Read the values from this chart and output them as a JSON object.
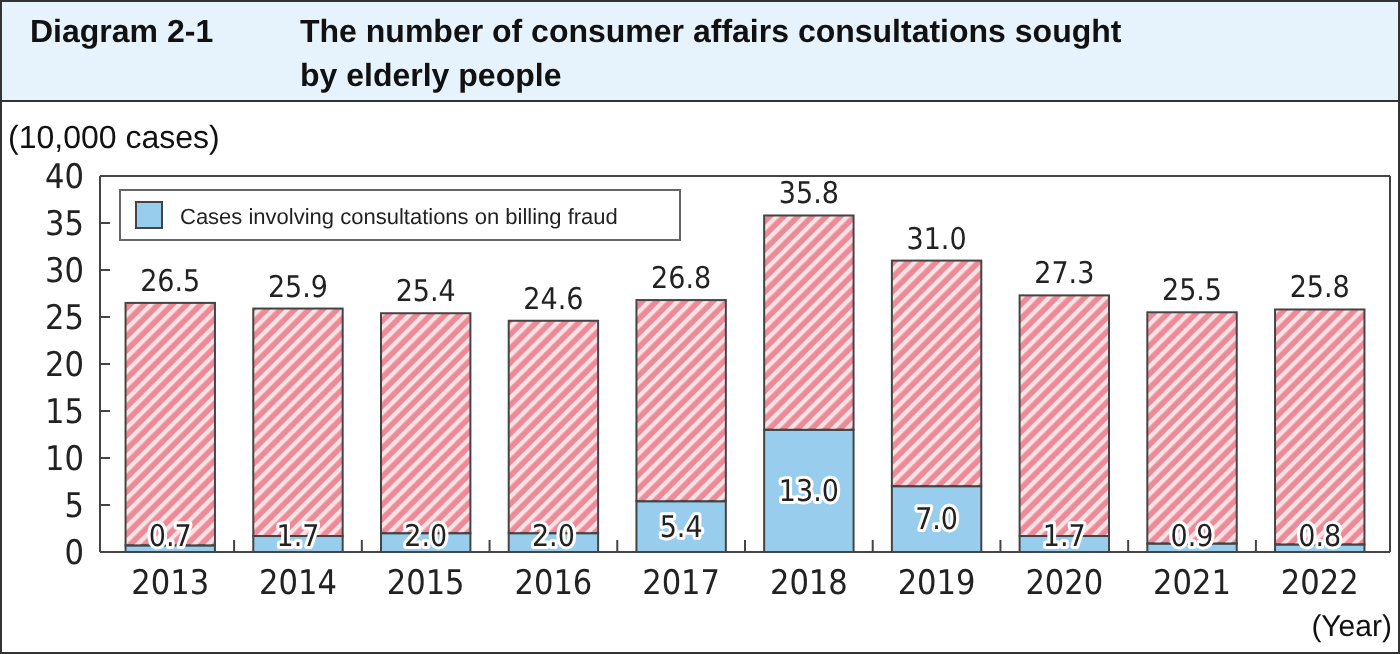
{
  "chart_data": {
    "type": "bar",
    "title": "Diagram 2-1",
    "subtitle": "The number of consumer affairs consultations sought by elderly people",
    "ylabel": "(10,000 cases)",
    "xlabel": "(Year)",
    "categories": [
      "2013",
      "2014",
      "2015",
      "2016",
      "2017",
      "2018",
      "2019",
      "2020",
      "2021",
      "2022"
    ],
    "stacked": true,
    "ylim": [
      0,
      40
    ],
    "yticks": [
      0,
      5,
      10,
      15,
      20,
      25,
      30,
      35,
      40
    ],
    "legend": "top left",
    "grid": false,
    "series": [
      {
        "name": "Cases involving consultations on billing fraud",
        "color": "#99cdee",
        "values": [
          0.7,
          1.7,
          2.0,
          2.0,
          5.4,
          13.0,
          7.0,
          1.7,
          0.9,
          0.8
        ],
        "value_labels": [
          "0.7",
          "1.7",
          "2.0",
          "2.0",
          "5.4",
          "13.0",
          "7.0",
          "1.7",
          "0.9",
          "0.8"
        ]
      },
      {
        "color": "#ee8a98",
        "values": [
          25.8,
          24.2,
          23.4,
          22.6,
          21.4,
          22.8,
          24.0,
          25.6,
          24.6,
          25.0
        ]
      }
    ],
    "totals": [
      "26.5",
      "25.9",
      "25.4",
      "24.6",
      "26.8",
      "35.8",
      "31.0",
      "27.3",
      "25.5",
      "25.8"
    ]
  }
}
